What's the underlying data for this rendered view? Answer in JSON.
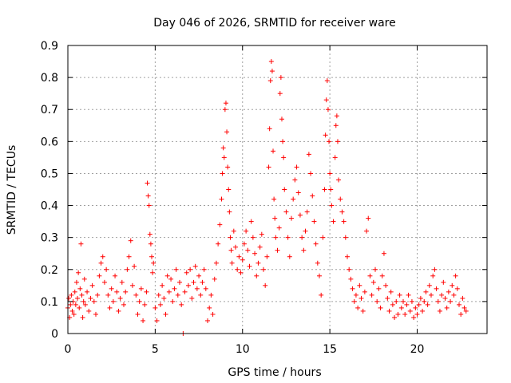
{
  "chart_data": {
    "type": "scatter",
    "title": "Day 046 of 2026, SRMTID for receiver ware",
    "xlabel": "GPS time / hours",
    "ylabel": "SRMTID / TECUs",
    "xlim": [
      0,
      24
    ],
    "ylim": [
      0,
      0.9
    ],
    "xticks": [
      0,
      5,
      10,
      15,
      20
    ],
    "yticks": [
      0,
      0.1,
      0.2,
      0.3,
      0.4,
      0.5,
      0.6,
      0.7,
      0.8,
      0.9
    ],
    "xtick_labels": [
      "0",
      "5",
      "10",
      "15",
      "20"
    ],
    "ytick_labels": [
      "0",
      "0.1",
      "0.2",
      "0.3",
      "0.4",
      "0.5",
      "0.6",
      "0.7",
      "0.8",
      "0.9"
    ],
    "grid": true,
    "marker": "+",
    "color": "#ff0000",
    "series": [
      {
        "name": "SRMTID",
        "points": [
          [
            0.0,
            0.08
          ],
          [
            0.05,
            0.11
          ],
          [
            0.1,
            0.05
          ],
          [
            0.15,
            0.09
          ],
          [
            0.2,
            0.12
          ],
          [
            0.25,
            0.07
          ],
          [
            0.3,
            0.1
          ],
          [
            0.35,
            0.06
          ],
          [
            0.4,
            0.13
          ],
          [
            0.45,
            0.09
          ],
          [
            0.5,
            0.16
          ],
          [
            0.55,
            0.11
          ],
          [
            0.6,
            0.19
          ],
          [
            0.65,
            0.08
          ],
          [
            0.7,
            0.14
          ],
          [
            0.75,
            0.28
          ],
          [
            0.8,
            0.12
          ],
          [
            0.85,
            0.05
          ],
          [
            0.9,
            0.1
          ],
          [
            0.95,
            0.17
          ],
          [
            1.0,
            0.09
          ],
          [
            1.1,
            0.13
          ],
          [
            1.2,
            0.07
          ],
          [
            1.3,
            0.11
          ],
          [
            1.4,
            0.15
          ],
          [
            1.5,
            0.1
          ],
          [
            1.6,
            0.06
          ],
          [
            1.7,
            0.12
          ],
          [
            1.8,
            0.18
          ],
          [
            1.9,
            0.22
          ],
          [
            2.0,
            0.24
          ],
          [
            2.1,
            0.16
          ],
          [
            2.2,
            0.2
          ],
          [
            2.3,
            0.12
          ],
          [
            2.4,
            0.08
          ],
          [
            2.5,
            0.14
          ],
          [
            2.6,
            0.1
          ],
          [
            2.7,
            0.18
          ],
          [
            2.8,
            0.13
          ],
          [
            2.9,
            0.07
          ],
          [
            3.0,
            0.11
          ],
          [
            3.1,
            0.16
          ],
          [
            3.2,
            0.09
          ],
          [
            3.3,
            0.13
          ],
          [
            3.4,
            0.2
          ],
          [
            3.5,
            0.24
          ],
          [
            3.6,
            0.29
          ],
          [
            3.7,
            0.15
          ],
          [
            3.8,
            0.21
          ],
          [
            3.9,
            0.12
          ],
          [
            4.0,
            0.06
          ],
          [
            4.1,
            0.1
          ],
          [
            4.2,
            0.14
          ],
          [
            4.3,
            0.04
          ],
          [
            4.4,
            0.09
          ],
          [
            4.5,
            0.13
          ],
          [
            4.55,
            0.47
          ],
          [
            4.6,
            0.43
          ],
          [
            4.65,
            0.4
          ],
          [
            4.7,
            0.31
          ],
          [
            4.75,
            0.28
          ],
          [
            4.8,
            0.24
          ],
          [
            4.85,
            0.19
          ],
          [
            4.9,
            0.22
          ],
          [
            5.0,
            0.08
          ],
          [
            5.1,
            0.04
          ],
          [
            5.2,
            0.12
          ],
          [
            5.3,
            0.09
          ],
          [
            5.4,
            0.15
          ],
          [
            5.5,
            0.11
          ],
          [
            5.6,
            0.06
          ],
          [
            5.7,
            0.18
          ],
          [
            5.8,
            0.13
          ],
          [
            5.9,
            0.17
          ],
          [
            6.0,
            0.1
          ],
          [
            6.1,
            0.14
          ],
          [
            6.2,
            0.2
          ],
          [
            6.3,
            0.12
          ],
          [
            6.4,
            0.16
          ],
          [
            6.5,
            0.09
          ],
          [
            6.6,
            0.0
          ],
          [
            6.7,
            0.13
          ],
          [
            6.8,
            0.19
          ],
          [
            6.9,
            0.15
          ],
          [
            7.0,
            0.2
          ],
          [
            7.1,
            0.11
          ],
          [
            7.2,
            0.16
          ],
          [
            7.3,
            0.21
          ],
          [
            7.4,
            0.14
          ],
          [
            7.5,
            0.18
          ],
          [
            7.6,
            0.12
          ],
          [
            7.7,
            0.16
          ],
          [
            7.8,
            0.2
          ],
          [
            7.9,
            0.14
          ],
          [
            8.0,
            0.04
          ],
          [
            8.1,
            0.08
          ],
          [
            8.2,
            0.12
          ],
          [
            8.3,
            0.06
          ],
          [
            8.4,
            0.17
          ],
          [
            8.5,
            0.22
          ],
          [
            8.6,
            0.28
          ],
          [
            8.7,
            0.34
          ],
          [
            8.8,
            0.42
          ],
          [
            8.85,
            0.5
          ],
          [
            8.9,
            0.58
          ],
          [
            8.95,
            0.55
          ],
          [
            9.0,
            0.7
          ],
          [
            9.05,
            0.72
          ],
          [
            9.1,
            0.63
          ],
          [
            9.15,
            0.52
          ],
          [
            9.2,
            0.45
          ],
          [
            9.25,
            0.38
          ],
          [
            9.3,
            0.3
          ],
          [
            9.35,
            0.26
          ],
          [
            9.4,
            0.22
          ],
          [
            9.5,
            0.32
          ],
          [
            9.6,
            0.27
          ],
          [
            9.7,
            0.2
          ],
          [
            9.8,
            0.24
          ],
          [
            9.9,
            0.19
          ],
          [
            10.0,
            0.23
          ],
          [
            10.1,
            0.28
          ],
          [
            10.2,
            0.32
          ],
          [
            10.3,
            0.26
          ],
          [
            10.4,
            0.21
          ],
          [
            10.5,
            0.35
          ],
          [
            10.6,
            0.3
          ],
          [
            10.7,
            0.25
          ],
          [
            10.8,
            0.18
          ],
          [
            10.9,
            0.22
          ],
          [
            11.0,
            0.27
          ],
          [
            11.1,
            0.31
          ],
          [
            11.2,
            0.2
          ],
          [
            11.3,
            0.15
          ],
          [
            11.4,
            0.24
          ],
          [
            11.5,
            0.52
          ],
          [
            11.55,
            0.64
          ],
          [
            11.6,
            0.79
          ],
          [
            11.65,
            0.85
          ],
          [
            11.7,
            0.82
          ],
          [
            11.75,
            0.57
          ],
          [
            11.8,
            0.42
          ],
          [
            11.85,
            0.36
          ],
          [
            11.9,
            0.3
          ],
          [
            12.0,
            0.26
          ],
          [
            12.1,
            0.33
          ],
          [
            12.15,
            0.75
          ],
          [
            12.2,
            0.8
          ],
          [
            12.25,
            0.67
          ],
          [
            12.3,
            0.6
          ],
          [
            12.35,
            0.55
          ],
          [
            12.4,
            0.45
          ],
          [
            12.5,
            0.38
          ],
          [
            12.6,
            0.3
          ],
          [
            12.7,
            0.24
          ],
          [
            12.8,
            0.36
          ],
          [
            12.9,
            0.42
          ],
          [
            13.0,
            0.48
          ],
          [
            13.1,
            0.52
          ],
          [
            13.2,
            0.44
          ],
          [
            13.3,
            0.37
          ],
          [
            13.4,
            0.3
          ],
          [
            13.5,
            0.26
          ],
          [
            13.6,
            0.32
          ],
          [
            13.7,
            0.38
          ],
          [
            13.8,
            0.56
          ],
          [
            13.9,
            0.5
          ],
          [
            14.0,
            0.43
          ],
          [
            14.1,
            0.35
          ],
          [
            14.2,
            0.28
          ],
          [
            14.3,
            0.22
          ],
          [
            14.4,
            0.18
          ],
          [
            14.5,
            0.12
          ],
          [
            14.6,
            0.3
          ],
          [
            14.7,
            0.45
          ],
          [
            14.75,
            0.62
          ],
          [
            14.8,
            0.73
          ],
          [
            14.85,
            0.79
          ],
          [
            14.9,
            0.7
          ],
          [
            14.95,
            0.6
          ],
          [
            15.0,
            0.5
          ],
          [
            15.05,
            0.45
          ],
          [
            15.1,
            0.4
          ],
          [
            15.2,
            0.35
          ],
          [
            15.3,
            0.55
          ],
          [
            15.35,
            0.65
          ],
          [
            15.4,
            0.68
          ],
          [
            15.45,
            0.6
          ],
          [
            15.5,
            0.48
          ],
          [
            15.6,
            0.42
          ],
          [
            15.7,
            0.38
          ],
          [
            15.8,
            0.35
          ],
          [
            15.9,
            0.3
          ],
          [
            16.0,
            0.24
          ],
          [
            16.1,
            0.2
          ],
          [
            16.2,
            0.17
          ],
          [
            16.3,
            0.14
          ],
          [
            16.4,
            0.1
          ],
          [
            16.5,
            0.12
          ],
          [
            16.6,
            0.08
          ],
          [
            16.7,
            0.15
          ],
          [
            16.8,
            0.11
          ],
          [
            16.9,
            0.07
          ],
          [
            17.0,
            0.13
          ],
          [
            17.1,
            0.32
          ],
          [
            17.2,
            0.36
          ],
          [
            17.3,
            0.18
          ],
          [
            17.4,
            0.12
          ],
          [
            17.5,
            0.16
          ],
          [
            17.6,
            0.2
          ],
          [
            17.7,
            0.1
          ],
          [
            17.8,
            0.14
          ],
          [
            17.9,
            0.08
          ],
          [
            18.0,
            0.18
          ],
          [
            18.1,
            0.25
          ],
          [
            18.2,
            0.15
          ],
          [
            18.3,
            0.11
          ],
          [
            18.4,
            0.07
          ],
          [
            18.5,
            0.13
          ],
          [
            18.6,
            0.09
          ],
          [
            18.7,
            0.05
          ],
          [
            18.8,
            0.1
          ],
          [
            18.9,
            0.06
          ],
          [
            19.0,
            0.12
          ],
          [
            19.1,
            0.08
          ],
          [
            19.2,
            0.1
          ],
          [
            19.3,
            0.06
          ],
          [
            19.4,
            0.09
          ],
          [
            19.5,
            0.12
          ],
          [
            19.6,
            0.07
          ],
          [
            19.7,
            0.1
          ],
          [
            19.8,
            0.05
          ],
          [
            19.9,
            0.08
          ],
          [
            20.0,
            0.06
          ],
          [
            20.1,
            0.09
          ],
          [
            20.2,
            0.11
          ],
          [
            20.3,
            0.07
          ],
          [
            20.4,
            0.1
          ],
          [
            20.5,
            0.13
          ],
          [
            20.6,
            0.09
          ],
          [
            20.7,
            0.15
          ],
          [
            20.8,
            0.12
          ],
          [
            20.9,
            0.18
          ],
          [
            21.0,
            0.2
          ],
          [
            21.1,
            0.14
          ],
          [
            21.2,
            0.1
          ],
          [
            21.3,
            0.07
          ],
          [
            21.4,
            0.12
          ],
          [
            21.5,
            0.16
          ],
          [
            21.6,
            0.11
          ],
          [
            21.7,
            0.08
          ],
          [
            21.8,
            0.13
          ],
          [
            21.9,
            0.1
          ],
          [
            22.0,
            0.15
          ],
          [
            22.1,
            0.12
          ],
          [
            22.2,
            0.18
          ],
          [
            22.3,
            0.14
          ],
          [
            22.4,
            0.09
          ],
          [
            22.5,
            0.06
          ],
          [
            22.6,
            0.11
          ],
          [
            22.7,
            0.08
          ],
          [
            22.8,
            0.07
          ]
        ]
      }
    ]
  }
}
